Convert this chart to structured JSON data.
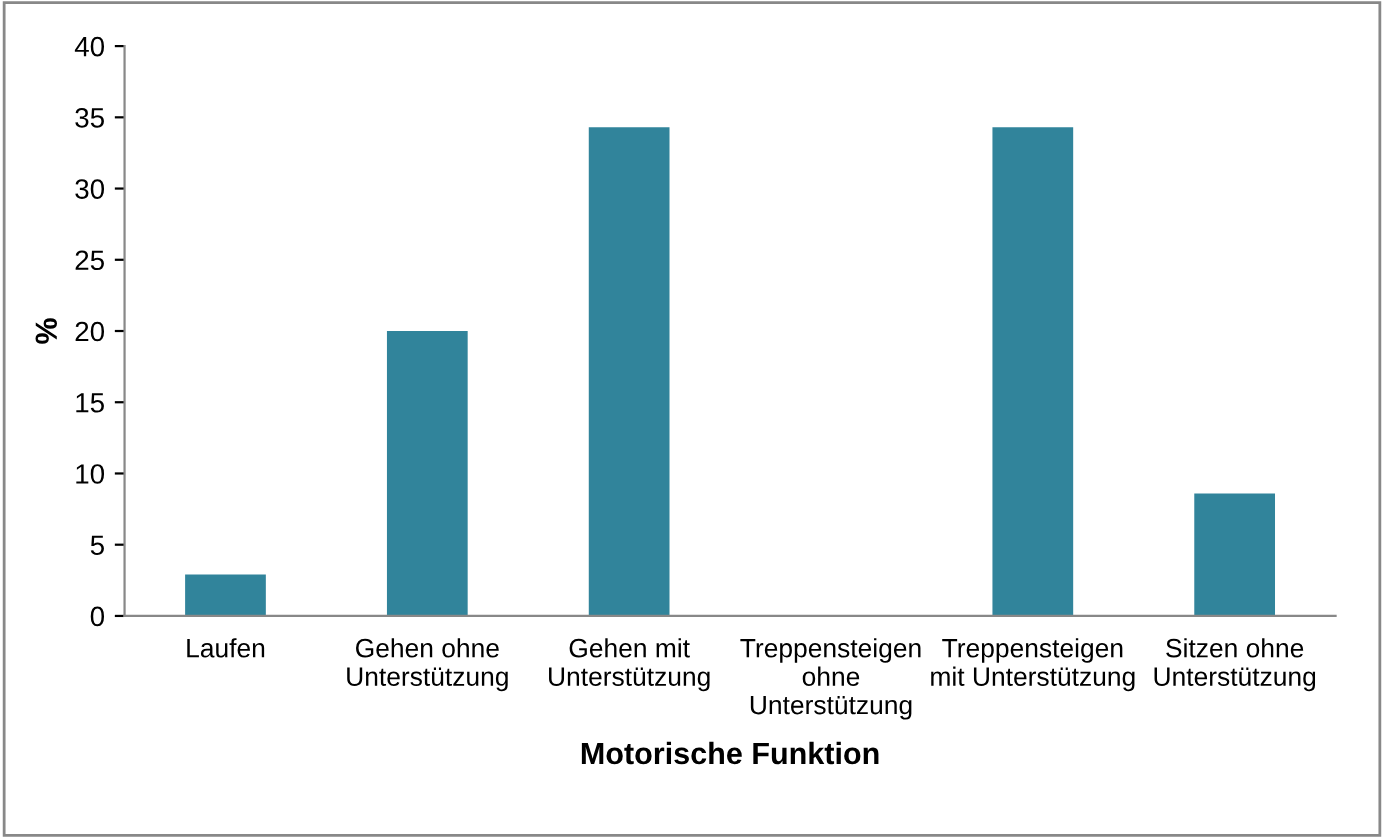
{
  "chart_data": {
    "type": "bar",
    "xlabel": "Motorische Funktion",
    "ylabel": "%",
    "categories": [
      "Laufen",
      "Gehen ohne\nUnterstützung",
      "Gehen mit\nUnterstützung",
      "Treppensteigen\nohne\nUnterstützung",
      "Treppensteigen\nmit Unterstützung",
      "Sitzen ohne\nUnterstützung"
    ],
    "values": [
      2.9,
      20,
      34.3,
      0,
      34.3,
      8.6
    ],
    "color": "#31849b",
    "ylim": [
      0,
      40
    ],
    "yticks": [
      0,
      5,
      10,
      15,
      20,
      25,
      30,
      35,
      40
    ],
    "grid": false,
    "legend": false
  }
}
